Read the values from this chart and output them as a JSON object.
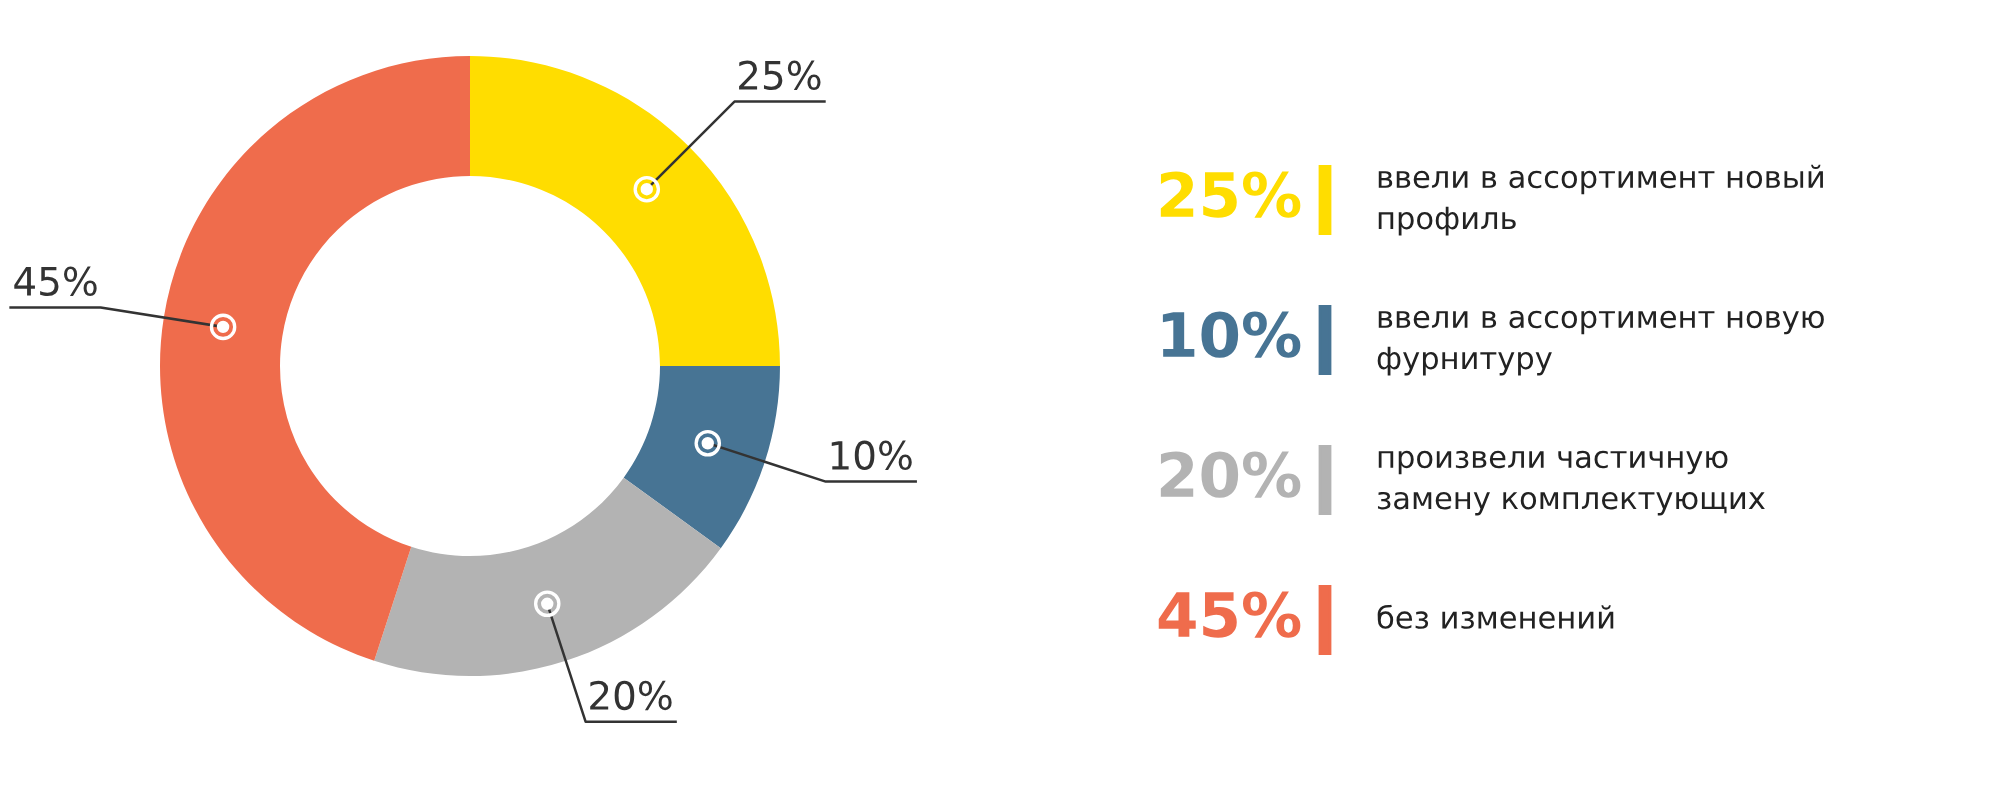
{
  "chart_data": {
    "type": "donut",
    "categories": [
      "ввели в ассортимент новый профиль",
      "ввели в ассортимент новую фурнитуру",
      "произвели частичную замену комплектующих",
      "без изменений"
    ],
    "values": [
      25,
      10,
      20,
      45
    ],
    "value_labels": [
      "25%",
      "10%",
      "20%",
      "45%"
    ],
    "colors": [
      "#ffdd00",
      "#477494",
      "#b3b3b3",
      "#ef6c4c"
    ],
    "legend": "right"
  }
}
